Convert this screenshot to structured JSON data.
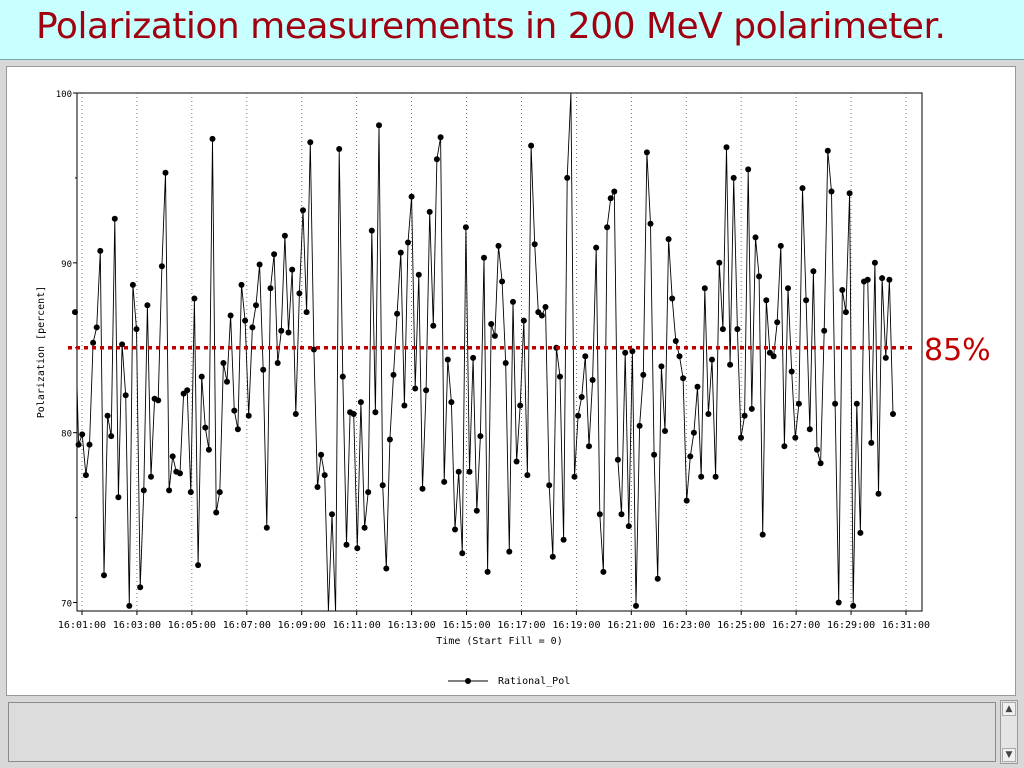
{
  "slide": {
    "title": "Polarization measurements in 200 MeV polarimeter."
  },
  "annotation": {
    "label": "85%",
    "value": 85,
    "color": "#c00000"
  },
  "chart_data": {
    "type": "line",
    "title": "",
    "xlabel": "Time (Start Fill = 0)",
    "ylabel": "Polarization [percent]",
    "xlim": [
      "16:01:00",
      "16:31:00"
    ],
    "ylim": [
      69.5,
      100
    ],
    "x_ticks": [
      "16:01:00",
      "16:03:00",
      "16:05:00",
      "16:07:00",
      "16:09:00",
      "16:11:00",
      "16:13:00",
      "16:15:00",
      "16:17:00",
      "16:19:00",
      "16:21:00",
      "16:23:00",
      "16:25:00",
      "16:27:00",
      "16:29:00",
      "16:31:00"
    ],
    "y_ticks": [
      70,
      80,
      90,
      100
    ],
    "y_minor_ticks": [
      75,
      85,
      95
    ],
    "grid": "vertical dotted at x ticks",
    "legend": "bottom-center",
    "series": [
      {
        "name": "Rational_Pol",
        "color": "#000000",
        "values": [
          87.1,
          79.3,
          79.9,
          77.5,
          79.3,
          85.3,
          86.2,
          90.7,
          71.6,
          81.0,
          79.8,
          92.6,
          76.2,
          85.2,
          82.2,
          69.8,
          88.7,
          86.1,
          70.9,
          76.6,
          87.5,
          77.4,
          82.0,
          81.9,
          89.8,
          95.3,
          76.6,
          78.6,
          77.7,
          77.6,
          82.3,
          82.5,
          76.5,
          87.9,
          72.2,
          83.3,
          80.3,
          79.0,
          97.3,
          75.3,
          76.5,
          84.1,
          83.0,
          86.9,
          81.3,
          80.2,
          88.7,
          86.6,
          81.0,
          86.2,
          87.5,
          89.9,
          83.7,
          74.4,
          88.5,
          90.5,
          84.1,
          86.0,
          91.6,
          85.9,
          89.6,
          81.1,
          88.2,
          93.1,
          87.1,
          97.1,
          84.9,
          76.8,
          78.7,
          77.5,
          69.5,
          75.2,
          69.4,
          96.7,
          83.3,
          73.4,
          81.2,
          81.1,
          73.2,
          81.8,
          74.4,
          76.5,
          91.9,
          81.2,
          98.1,
          76.9,
          72.0,
          79.6,
          83.4,
          87.0,
          90.6,
          81.6,
          91.2,
          93.9,
          82.6,
          89.3,
          76.7,
          82.5,
          93.0,
          86.3,
          96.1,
          97.4,
          77.1,
          84.3,
          81.8,
          74.3,
          77.7,
          72.9,
          92.1,
          77.7,
          84.4,
          75.4,
          79.8,
          90.3,
          71.8,
          86.4,
          85.7,
          91.0,
          88.9,
          84.1,
          73.0,
          87.7,
          78.3,
          81.6,
          86.6,
          77.5,
          96.9,
          91.1,
          87.1,
          86.9,
          87.4,
          76.9,
          72.7,
          85.0,
          83.3,
          73.7,
          95.0,
          100.0,
          77.4,
          81.0,
          82.1,
          84.5,
          79.2,
          83.1,
          90.9,
          75.2,
          71.8,
          92.1,
          93.8,
          94.2,
          78.4,
          75.2,
          84.7,
          74.5,
          84.8,
          69.8,
          80.4,
          83.4,
          96.5,
          92.3,
          78.7,
          71.4,
          83.9,
          80.1,
          91.4,
          87.9,
          85.4,
          84.5,
          83.2,
          76.0,
          78.6,
          80.0,
          82.7,
          77.4,
          88.5,
          81.1,
          84.3,
          77.4,
          90.0,
          86.1,
          96.8,
          84.0,
          95.0,
          86.1,
          79.7,
          81.0,
          95.5,
          81.4,
          91.5,
          89.2,
          74.0,
          87.8,
          84.7,
          84.5,
          86.5,
          91.0,
          79.2,
          88.5,
          83.6,
          79.7,
          81.7,
          94.4,
          87.8,
          80.2,
          89.5,
          79.0,
          78.2,
          86.0,
          96.6,
          94.2,
          81.7,
          70.0,
          88.4,
          87.1,
          94.1,
          69.8,
          81.7,
          74.1,
          88.9,
          89.0,
          79.4,
          90.0,
          76.4,
          89.1,
          84.4,
          89.0,
          81.1
        ]
      }
    ],
    "reference_line": {
      "value": 85,
      "label": "85%",
      "style": "dotted",
      "color": "#c00000"
    }
  }
}
